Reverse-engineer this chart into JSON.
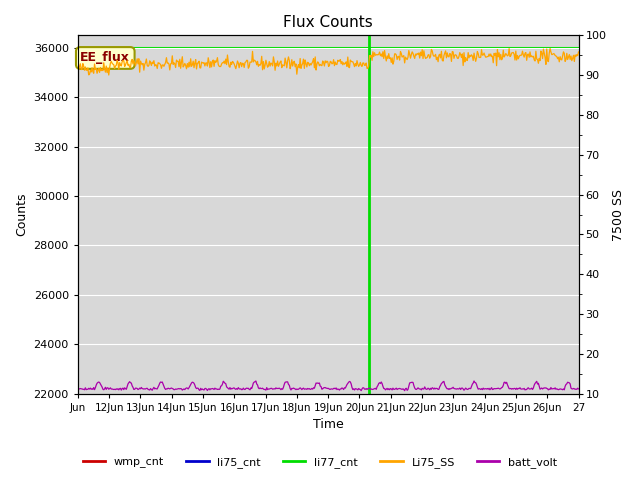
{
  "title": "Flux Counts",
  "xlabel": "Time",
  "ylabel_left": "Counts",
  "ylabel_right": "7500 SS",
  "plot_bg_color": "#d8d8d8",
  "fig_bg_color": "#ffffff",
  "ylim_left": [
    22000,
    36500
  ],
  "ylim_right": [
    10,
    100
  ],
  "yticks_left": [
    22000,
    24000,
    26000,
    28000,
    30000,
    32000,
    34000,
    36000
  ],
  "yticks_right": [
    10,
    20,
    30,
    40,
    50,
    60,
    70,
    80,
    90,
    100
  ],
  "xlim": [
    0,
    16
  ],
  "xtick_positions": [
    0,
    1,
    2,
    3,
    4,
    5,
    6,
    7,
    8,
    9,
    10,
    11,
    12,
    13,
    14,
    15,
    16
  ],
  "xtick_labels": [
    "Jun",
    "12Jun",
    "13Jun",
    "14Jun",
    "15Jun",
    "16Jun",
    "17Jun",
    "18Jun",
    "19Jun",
    "20Jun",
    "21Jun",
    "22Jun",
    "23Jun",
    "24Jun",
    "25Jun",
    "26Jun",
    "27"
  ],
  "ee_flux_label": "EE_flux",
  "li77_hline_y": 35980,
  "li77_hline_color": "#00dd00",
  "li77_vline_x": 9.3,
  "li77_vline_color": "#00dd00",
  "li77_vline_bottom": 23500,
  "Li75_SS_color": "#ffa500",
  "Li75_SS_mean": 35350,
  "Li75_SS_std": 130,
  "Li75_SS_mean_after": 35650,
  "batt_volt_color": "#aa00aa",
  "batt_volt_base": 22200,
  "batt_volt_noise": 25,
  "batt_volt_spike": 280,
  "legend_entries": [
    {
      "label": "wmp_cnt",
      "color": "#cc0000"
    },
    {
      "label": "li75_cnt",
      "color": "#0000cc"
    },
    {
      "label": "li77_cnt",
      "color": "#00dd00"
    },
    {
      "label": "Li75_SS",
      "color": "#ffa500"
    },
    {
      "label": "batt_volt",
      "color": "#aa00aa"
    }
  ],
  "title_fontsize": 11,
  "axis_label_fontsize": 9,
  "tick_fontsize": 8,
  "legend_fontsize": 8
}
